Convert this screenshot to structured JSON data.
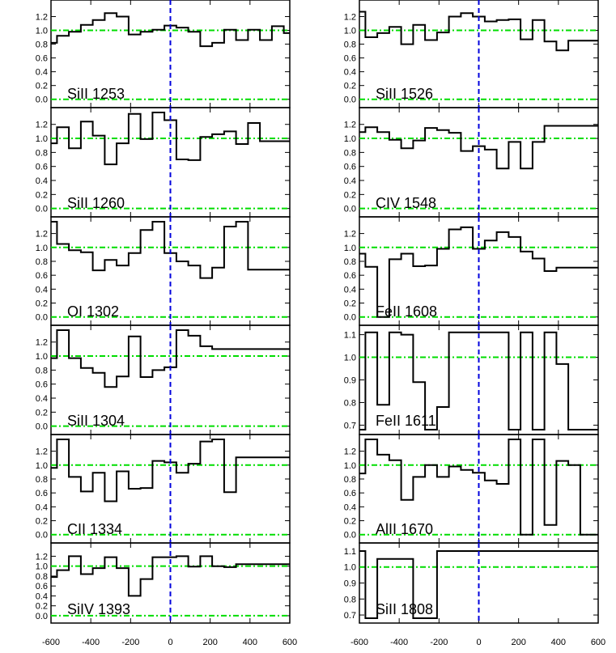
{
  "chart_data": {
    "type": "line",
    "title": "",
    "xlabel": "",
    "ylabel": "",
    "x_ticks": [
      -600,
      -400,
      -200,
      0,
      200,
      400,
      600
    ],
    "x_tick_labels": [
      "-600",
      "-400",
      "-200",
      "0",
      "200",
      "400",
      "600"
    ],
    "xlim": [
      -600,
      600
    ],
    "reference_lines": {
      "continuum": 1.0,
      "zero": 0.0,
      "velocity_zero": 0
    },
    "colors": {
      "spectrum": "#000000",
      "reference": "#00dd00",
      "velocity_zero": "#0000dd",
      "axes": "#000000"
    },
    "panels": [
      {
        "label": "SiII 1253",
        "column": "left",
        "ylim": [
          -0.05,
          1.37
        ],
        "y_tick_labels": [
          "0.0",
          "0.2",
          "0.4",
          "0.6",
          "0.8",
          "1.0",
          "1.2"
        ],
        "x": [
          -600,
          -540,
          -480,
          -420,
          -360,
          -300,
          -240,
          -180,
          -120,
          -60,
          0,
          60,
          120,
          180,
          240,
          300,
          360,
          420,
          480,
          540,
          600
        ],
        "y": [
          0.82,
          0.92,
          0.98,
          1.08,
          1.15,
          1.25,
          1.2,
          0.94,
          0.98,
          1.01,
          1.07,
          1.04,
          0.98,
          0.77,
          0.82,
          1.01,
          0.86,
          1.01,
          0.86,
          1.06,
          0.96
        ]
      },
      {
        "label": "SiII 1260",
        "column": "left",
        "ylim": [
          -0.05,
          1.37
        ],
        "y_tick_labels": [
          "0.0",
          "0.2",
          "0.4",
          "0.6",
          "0.8",
          "1.0",
          "1.2"
        ],
        "x": [
          -600,
          -540,
          -480,
          -420,
          -360,
          -300,
          -240,
          -180,
          -120,
          -60,
          0,
          60,
          120,
          180,
          240,
          300,
          360,
          420,
          480,
          540,
          600
        ],
        "y": [
          0.93,
          1.16,
          0.86,
          1.24,
          1.04,
          0.63,
          0.93,
          1.35,
          0.99,
          1.37,
          1.26,
          0.7,
          0.69,
          1.02,
          1.06,
          1.1,
          0.92,
          1.22,
          0.96,
          0.96,
          0.96
        ]
      },
      {
        "label": "OI 1302",
        "column": "left",
        "ylim": [
          -0.05,
          1.37
        ],
        "y_tick_labels": [
          "0.0",
          "0.2",
          "0.4",
          "0.6",
          "0.8",
          "1.0",
          "1.2"
        ],
        "x": [
          -600,
          -540,
          -480,
          -420,
          -360,
          -300,
          -240,
          -180,
          -120,
          -60,
          0,
          60,
          120,
          180,
          240,
          300,
          360,
          420,
          480,
          540,
          600
        ],
        "y": [
          1.37,
          1.05,
          0.96,
          0.93,
          0.67,
          0.82,
          0.74,
          0.92,
          1.25,
          1.37,
          0.92,
          0.8,
          0.74,
          0.56,
          0.71,
          1.3,
          1.37,
          0.68,
          0.68,
          0.68,
          0.68
        ]
      },
      {
        "label": "SiII 1304",
        "column": "left",
        "ylim": [
          -0.05,
          1.37
        ],
        "y_tick_labels": [
          "0.0",
          "0.2",
          "0.4",
          "0.6",
          "0.8",
          "1.0",
          "1.2"
        ],
        "x": [
          -600,
          -540,
          -480,
          -420,
          -360,
          -300,
          -240,
          -180,
          -120,
          -60,
          0,
          60,
          120,
          180,
          240,
          300,
          360,
          420,
          480,
          540,
          600
        ],
        "y": [
          0.97,
          1.37,
          0.97,
          0.83,
          0.76,
          0.56,
          0.71,
          1.28,
          0.7,
          0.8,
          0.84,
          1.37,
          1.29,
          1.14,
          1.1,
          1.1,
          1.1,
          1.1,
          1.1,
          1.1,
          1.1
        ]
      },
      {
        "label": "CII 1334",
        "column": "left",
        "ylim": [
          -0.05,
          1.37
        ],
        "y_tick_labels": [
          "0.0",
          "0.2",
          "0.4",
          "0.6",
          "0.8",
          "1.0",
          "1.2"
        ],
        "x": [
          -600,
          -540,
          -480,
          -420,
          -360,
          -300,
          -240,
          -180,
          -120,
          -60,
          0,
          60,
          120,
          180,
          240,
          300,
          360,
          420,
          480,
          540,
          600
        ],
        "y": [
          0.96,
          1.37,
          0.83,
          0.62,
          0.89,
          0.48,
          0.91,
          0.66,
          0.67,
          1.06,
          1.04,
          0.89,
          1.02,
          1.34,
          1.37,
          0.61,
          1.11,
          1.11,
          1.11,
          1.11,
          1.11
        ]
      },
      {
        "label": "SiIV 1393",
        "column": "left",
        "ylim": [
          -0.05,
          1.37
        ],
        "y_tick_labels": [
          "0.0",
          "0.2",
          "0.4",
          "0.6",
          "0.8",
          "1.0",
          "1.2"
        ],
        "x": [
          -600,
          -540,
          -480,
          -420,
          -360,
          -300,
          -240,
          -180,
          -120,
          -60,
          0,
          60,
          120,
          180,
          240,
          300,
          360,
          420,
          480,
          540,
          600
        ],
        "y": [
          0.78,
          0.92,
          1.2,
          0.84,
          0.96,
          1.18,
          0.96,
          0.4,
          0.74,
          1.18,
          1.18,
          1.2,
          0.99,
          1.2,
          1.0,
          0.98,
          1.04,
          1.04,
          1.04,
          1.04,
          1.04
        ]
      },
      {
        "label": "SiII 1526",
        "column": "right",
        "ylim": [
          -0.05,
          1.37
        ],
        "y_tick_labels": [
          "0.0",
          "0.2",
          "0.4",
          "0.6",
          "0.8",
          "1.0",
          "1.2"
        ],
        "x": [
          -600,
          -540,
          -480,
          -420,
          -360,
          -300,
          -240,
          -180,
          -120,
          -60,
          0,
          60,
          120,
          180,
          240,
          300,
          360,
          420,
          480,
          540,
          600
        ],
        "y": [
          1.27,
          0.9,
          0.96,
          1.05,
          0.8,
          1.08,
          0.86,
          0.97,
          1.2,
          1.25,
          1.2,
          1.13,
          1.15,
          1.16,
          0.87,
          1.15,
          0.84,
          0.71,
          0.85,
          0.85,
          0.85
        ]
      },
      {
        "label": "CIV 1548",
        "column": "right",
        "ylim": [
          -0.05,
          1.37
        ],
        "y_tick_labels": [
          "0.0",
          "0.2",
          "0.4",
          "0.6",
          "0.8",
          "1.0",
          "1.2"
        ],
        "x": [
          -600,
          -540,
          -480,
          -420,
          -360,
          -300,
          -240,
          -180,
          -120,
          -60,
          0,
          60,
          120,
          180,
          240,
          300,
          360,
          420,
          480,
          540,
          600
        ],
        "y": [
          1.09,
          1.16,
          1.09,
          0.98,
          0.86,
          0.97,
          1.15,
          1.12,
          1.08,
          0.82,
          0.89,
          0.84,
          0.57,
          0.95,
          0.57,
          0.95,
          1.18,
          1.18,
          1.18,
          1.18,
          1.18
        ]
      },
      {
        "label": "FeII 1608",
        "column": "right",
        "ylim": [
          -0.05,
          1.37
        ],
        "y_tick_labels": [
          "0.0",
          "0.2",
          "0.4",
          "0.6",
          "0.8",
          "1.0",
          "1.2"
        ],
        "x": [
          -600,
          -540,
          -480,
          -420,
          -360,
          -300,
          -240,
          -180,
          -120,
          -60,
          0,
          60,
          120,
          180,
          240,
          300,
          360,
          420,
          480,
          540,
          600
        ],
        "y": [
          0.91,
          0.72,
          0.0,
          0.83,
          0.91,
          0.73,
          0.74,
          0.98,
          1.26,
          1.29,
          0.98,
          1.1,
          1.22,
          1.15,
          0.94,
          0.84,
          0.66,
          0.71,
          0.71,
          0.71,
          0.71
        ]
      },
      {
        "label": "FeII 1611",
        "column": "right",
        "ylim": [
          0.68,
          1.12
        ],
        "y_tick_labels": [
          "0.7",
          "0.8",
          "0.9",
          "1.0",
          "1.1"
        ],
        "x": [
          -600,
          -540,
          -480,
          -420,
          -360,
          -300,
          -240,
          -180,
          -120,
          -60,
          0,
          60,
          120,
          180,
          240,
          300,
          360,
          420,
          480,
          540,
          600
        ],
        "y": [
          0.68,
          1.11,
          0.79,
          1.11,
          1.1,
          0.89,
          0.68,
          0.78,
          1.11,
          1.11,
          1.11,
          1.11,
          1.11,
          0.68,
          1.11,
          0.68,
          1.11,
          0.97,
          0.68,
          0.68,
          0.68
        ]
      },
      {
        "label": "AlII 1670",
        "column": "right",
        "ylim": [
          -0.05,
          1.37
        ],
        "y_tick_labels": [
          "0.0",
          "0.2",
          "0.4",
          "0.6",
          "0.8",
          "1.0",
          "1.2"
        ],
        "x": [
          -600,
          -540,
          -480,
          -420,
          -360,
          -300,
          -240,
          -180,
          -120,
          -60,
          0,
          60,
          120,
          180,
          240,
          300,
          360,
          420,
          480,
          540,
          600
        ],
        "y": [
          0.88,
          1.37,
          1.15,
          1.07,
          0.5,
          0.83,
          1.0,
          0.83,
          0.98,
          0.93,
          0.89,
          0.78,
          0.73,
          1.37,
          0.0,
          1.37,
          0.14,
          1.06,
          1.0,
          0.0,
          0.0
        ]
      },
      {
        "label": "SiII 1808",
        "column": "right",
        "ylim": [
          0.68,
          1.12
        ],
        "y_tick_labels": [
          "0.7",
          "0.8",
          "0.9",
          "1.0",
          "1.1"
        ],
        "x": [
          -600,
          -540,
          -480,
          -420,
          -360,
          -300,
          -240,
          -180,
          -120,
          -60,
          0,
          60,
          120,
          180,
          240,
          300,
          360,
          420,
          480,
          540,
          600
        ],
        "y": [
          1.1,
          0.68,
          1.05,
          1.05,
          1.05,
          0.68,
          0.68,
          1.1,
          1.1,
          1.1,
          1.1,
          1.1,
          1.1,
          1.1,
          1.1,
          1.1,
          1.1,
          1.1,
          1.1,
          1.1,
          1.1
        ]
      }
    ]
  }
}
